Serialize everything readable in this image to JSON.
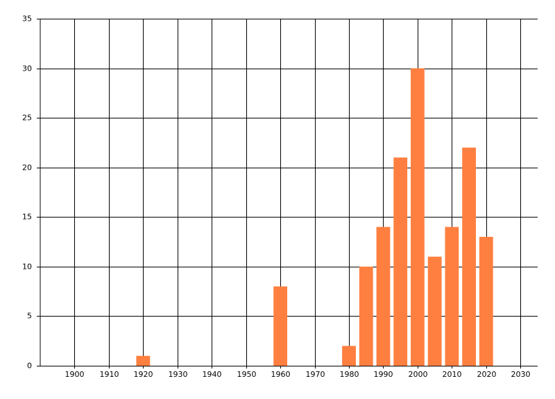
{
  "chart_data": {
    "type": "bar",
    "x": [
      1920,
      1960,
      1980,
      1985,
      1990,
      1995,
      2000,
      2005,
      2010,
      2015,
      2020
    ],
    "values": [
      1,
      8,
      2,
      10,
      14,
      21,
      30,
      11,
      14,
      22,
      13
    ],
    "color": "#ff7f40",
    "xlim": [
      1890,
      2035
    ],
    "xticks": [
      1900,
      1910,
      1920,
      1930,
      1940,
      1950,
      1960,
      1970,
      1980,
      1990,
      2000,
      2010,
      2020,
      2030
    ],
    "ylim": [
      0,
      35
    ],
    "yticks": [
      0,
      5,
      10,
      15,
      20,
      25,
      30,
      35
    ],
    "grid": true
  }
}
